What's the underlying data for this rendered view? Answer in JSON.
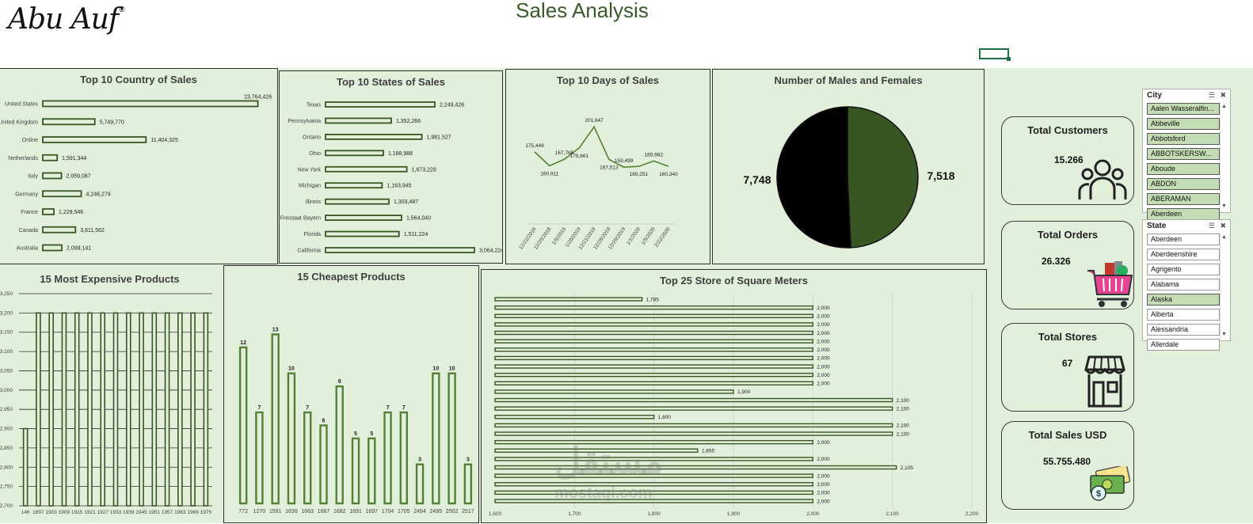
{
  "header": {
    "logo_text": "Abu Auf",
    "logo_mark": "®",
    "title": "Sales Analysis"
  },
  "watermark": {
    "text": "مستقل",
    "sub": "mostaql.com"
  },
  "kpis": [
    {
      "title": "Total Customers",
      "value": "15.266",
      "icon": "customers-icon"
    },
    {
      "title": "Total Orders",
      "value": "26.326",
      "icon": "shopping-basket-icon"
    },
    {
      "title": "Total Stores",
      "value": "67",
      "icon": "store-icon"
    },
    {
      "title": "Total Sales USD",
      "value": "55.755.480",
      "icon": "money-icon"
    }
  ],
  "slicers": {
    "city": {
      "title": "City",
      "items": [
        {
          "label": "Aalen Wasseralfin...",
          "selected": true
        },
        {
          "label": "Abbeville",
          "selected": true
        },
        {
          "label": "Abbotsford",
          "selected": true
        },
        {
          "label": "ABBOTSKERSW...",
          "selected": true
        },
        {
          "label": "Aboude",
          "selected": true
        },
        {
          "label": "ABDON",
          "selected": true
        },
        {
          "label": "ABERAMAN",
          "selected": true
        },
        {
          "label": "Aberdeen",
          "selected": true
        }
      ]
    },
    "state": {
      "title": "State",
      "items": [
        {
          "label": "Aberdeen",
          "selected": false
        },
        {
          "label": "Aberdeenshire",
          "selected": false
        },
        {
          "label": "Agrigento",
          "selected": false
        },
        {
          "label": "Alabama",
          "selected": false
        },
        {
          "label": "Alaska",
          "selected": true
        },
        {
          "label": "Alberta",
          "selected": false
        },
        {
          "label": "Alessandria",
          "selected": false
        },
        {
          "label": "Allerdale",
          "selected": false
        }
      ]
    }
  },
  "chart_data": [
    {
      "id": "countries",
      "type": "bar",
      "orientation": "horizontal",
      "title": "Top 10 Country of Sales",
      "categories": [
        "United States",
        "United Kingdom",
        "Online",
        "Netherlands",
        "Italy",
        "Germany",
        "France",
        "Canada",
        "Australia"
      ],
      "values": [
        23764426,
        5749770,
        11404325,
        1591344,
        2059087,
        4246279,
        1229546,
        3611562,
        2099141
      ],
      "labels": [
        "23,764,426",
        "5,749,770",
        "11,404,325",
        "1,591,344",
        "2,059,087",
        "4,246,279",
        "1,229,546",
        "3,611,562",
        "2,099,141"
      ],
      "xlim": [
        0,
        24500000
      ]
    },
    {
      "id": "states",
      "type": "bar",
      "orientation": "horizontal",
      "title": "Top 10 States of Sales",
      "categories": [
        "Texas",
        "Pennsylvania",
        "Ontario",
        "Ohio",
        "New York",
        "Michigan",
        "Illinois",
        "Freistaat Bayern",
        "Florida",
        "California"
      ],
      "values": [
        2249426,
        1352266,
        1981527,
        1188988,
        1673228,
        1163945,
        1303487,
        1564040,
        1511224,
        3064224
      ],
      "labels": [
        "2,249,426",
        "1,352,266",
        "1,981,527",
        "1,188,988",
        "1,673,228",
        "1,163,945",
        "1,303,487",
        "1,564,040",
        "1,511,224",
        "3,064,224"
      ],
      "xlim": [
        0,
        3064224
      ]
    },
    {
      "id": "days",
      "type": "line",
      "title": "Top  10 Days of Sales",
      "x": [
        "12/22/2018",
        "12/29/2018",
        "1/5/2019",
        "1/26/2019",
        "12/21/2019",
        "12/28/2019",
        "12/29/2019",
        "1/1/2020",
        "1/5/2020",
        "2/22/2020"
      ],
      "values": [
        175449,
        160911,
        167765,
        179661,
        201647,
        167513,
        159499,
        160251,
        165982,
        160340
      ],
      "labels": [
        "175,449",
        "160,911",
        "167,765",
        "179,661",
        "201,647",
        "167,513",
        "159,499",
        "160,251",
        "165,982",
        "160,340"
      ],
      "ylim": [
        100000,
        230000
      ]
    },
    {
      "id": "gender",
      "type": "pie",
      "title": "Number of Males and Females",
      "slices": [
        {
          "value": 7748,
          "label": "7,748",
          "color": "#000000"
        },
        {
          "value": 7518,
          "label": "7,518",
          "color": "#375623"
        }
      ]
    },
    {
      "id": "expensive",
      "type": "bar",
      "title": "15 Most Expensive Products",
      "categories": [
        "146",
        "1897",
        "1903",
        "1909",
        "1915",
        "1921",
        "1927",
        "1933",
        "1939",
        "1945",
        "1951",
        "1957",
        "1963",
        "1969",
        "1975"
      ],
      "values": [
        2900,
        3200,
        3200,
        3200,
        3200,
        3200,
        3200,
        3200,
        3200,
        3200,
        3200,
        3200,
        3200,
        3200,
        3200
      ],
      "ylim": [
        2700,
        3250
      ],
      "yticks": [
        "2,700",
        "2,750",
        "2,800",
        "2,850",
        "2,900",
        "2,950",
        "3,000",
        "3,050",
        "3,100",
        "3,150",
        "3,200",
        "3,250"
      ],
      "grid": true
    },
    {
      "id": "cheap",
      "type": "bar",
      "title": "15 Cheapest Products",
      "categories": [
        "772",
        "1270",
        "1591",
        "1639",
        "1663",
        "1667",
        "1682",
        "1691",
        "1697",
        "1704",
        "1705",
        "2494",
        "2495",
        "2502",
        "2517"
      ],
      "values": [
        12,
        7,
        13,
        10,
        7,
        6,
        9,
        5,
        5,
        7,
        7,
        3,
        10,
        10,
        3
      ],
      "labels": [
        "12",
        "7",
        "13",
        "10",
        "7",
        "6",
        "9",
        "5",
        "5",
        "7",
        "7",
        "3",
        "10",
        "10",
        "3"
      ],
      "ylim": [
        0,
        14
      ]
    },
    {
      "id": "stores",
      "type": "bar",
      "orientation": "horizontal",
      "title": "Top 25 Store of Square Meters",
      "values": [
        1785,
        2000,
        2000,
        2000,
        2000,
        2000,
        2000,
        2000,
        2000,
        2000,
        2000,
        1900,
        2100,
        2100,
        1800,
        2100,
        2100,
        2000,
        1855,
        2000,
        2105,
        2000,
        2000,
        2000,
        2000
      ],
      "labels": [
        "1,785",
        "2,000",
        "2,000",
        "2,000",
        "2,000",
        "2,000",
        "2,000",
        "2,000",
        "2,000",
        "2,000",
        "2,000",
        "1,900",
        "2,100",
        "2,100",
        "1,800",
        "2,100",
        "2,100",
        "2,000",
        "1,855",
        "2,000",
        "2,105",
        "2,000",
        "2,000",
        "2,000",
        "2,000"
      ],
      "xlim": [
        1600,
        2200
      ],
      "xticks": [
        "1,600",
        "1,700",
        "1,800",
        "1,900",
        "2,000",
        "2,100",
        "2,200"
      ],
      "grid": true
    }
  ]
}
